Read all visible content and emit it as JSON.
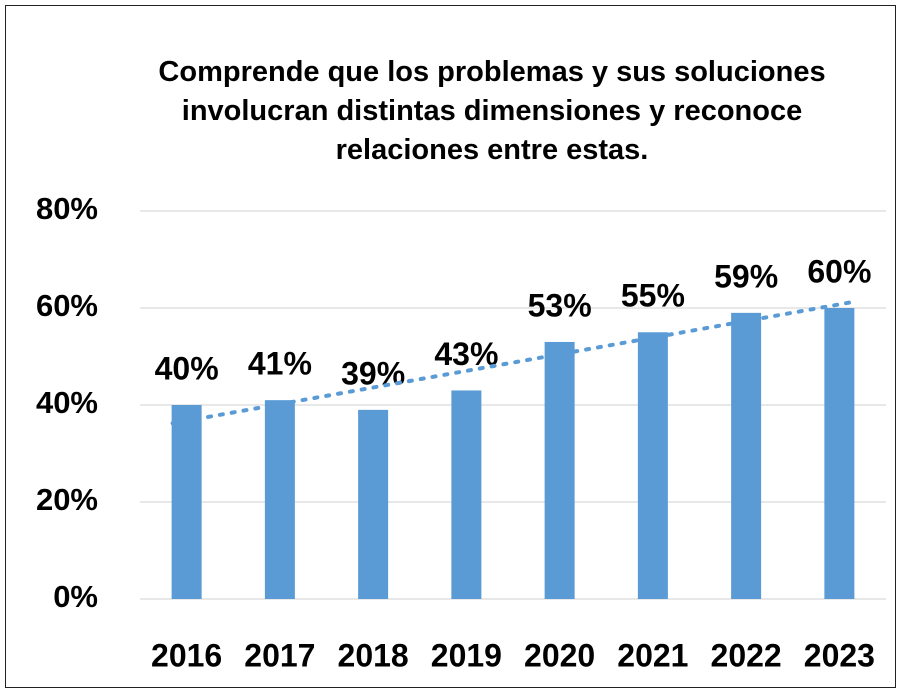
{
  "chart_data": {
    "type": "bar",
    "title": "Comprende que los problemas y sus soluciones involucran distintas dimensiones y reconoce relaciones entre estas.",
    "categories": [
      "2016",
      "2017",
      "2018",
      "2019",
      "2020",
      "2021",
      "2022",
      "2023"
    ],
    "values": [
      40,
      41,
      39,
      43,
      53,
      55,
      59,
      60
    ],
    "value_labels": [
      "40%",
      "41%",
      "39%",
      "43%",
      "53%",
      "55%",
      "59%",
      "60%"
    ],
    "color": "#5b9bd5",
    "ylim": [
      0,
      80
    ],
    "yticks": [
      {
        "value": 0,
        "label": "0%"
      },
      {
        "value": 20,
        "label": "20%"
      },
      {
        "value": 40,
        "label": "40%"
      },
      {
        "value": 60,
        "label": "60%"
      },
      {
        "value": 80,
        "label": "80%"
      }
    ],
    "grid": true,
    "trendline": true
  }
}
